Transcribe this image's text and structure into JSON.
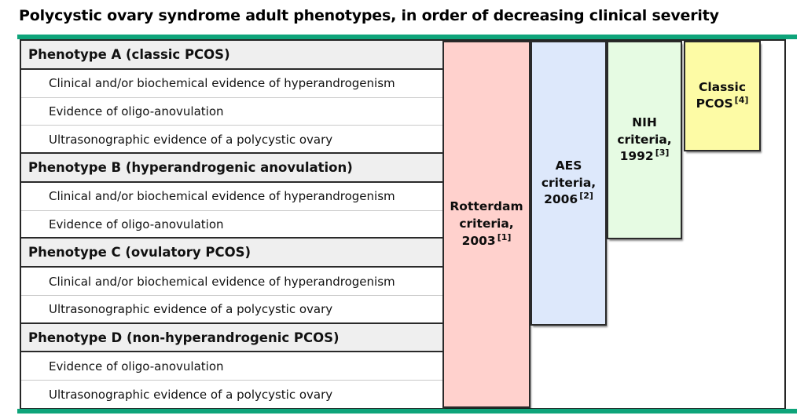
{
  "title": "Polycystic ovary syndrome adult phenotypes, in order of decreasing clinical severity",
  "colors": {
    "divider_green": "#0ea47a",
    "header_row_bg": "#efefef",
    "border_dark": "#262626",
    "row_separator": "#c9c9c9",
    "rotterdam_pink": "#ffd1cd",
    "aes_blue": "#dde8fb",
    "nih_green": "#e6fbe3",
    "classic_yellow": "#fdfba5"
  },
  "table": {
    "rows": [
      {
        "type": "header",
        "text": "Phenotype A (classic PCOS)"
      },
      {
        "type": "criterion",
        "text": "Clinical and/or biochemical evidence of hyperandrogenism"
      },
      {
        "type": "criterion",
        "text": "Evidence of oligo-anovulation"
      },
      {
        "type": "criterion",
        "text": "Ultrasonographic evidence of a polycystic ovary"
      },
      {
        "type": "header",
        "text": "Phenotype B (hyperandrogenic anovulation)"
      },
      {
        "type": "criterion",
        "text": "Clinical and/or biochemical evidence of hyperandrogenism"
      },
      {
        "type": "criterion",
        "text": "Evidence of oligo-anovulation"
      },
      {
        "type": "header",
        "text": "Phenotype C (ovulatory PCOS)"
      },
      {
        "type": "criterion",
        "text": "Clinical and/or biochemical evidence of hyperandrogenism"
      },
      {
        "type": "criterion",
        "text": "Ultrasonographic evidence of a polycystic ovary"
      },
      {
        "type": "header",
        "text": "Phenotype D (non-hyperandrogenic PCOS)"
      },
      {
        "type": "criterion",
        "text": "Evidence of oligo-anovulation"
      },
      {
        "type": "criterion",
        "text": "Ultrasonographic evidence of a polycystic ovary"
      }
    ]
  },
  "criteria_columns": [
    {
      "id": "rotterdam",
      "lines": [
        "Rotterdam",
        "criteria,"
      ],
      "year": "2003",
      "ref": "[1]",
      "color_key": "rotterdam_pink"
    },
    {
      "id": "aes",
      "lines": [
        "AES",
        "criteria,"
      ],
      "year": "2006",
      "ref": "[2]",
      "color_key": "aes_blue"
    },
    {
      "id": "nih",
      "lines": [
        "NIH",
        "criteria,"
      ],
      "year": "1992",
      "ref": "[3]",
      "color_key": "nih_green"
    },
    {
      "id": "classic",
      "lines": [
        "Classic"
      ],
      "year": "PCOS",
      "ref": "[4]",
      "color_key": "classic_yellow"
    }
  ]
}
